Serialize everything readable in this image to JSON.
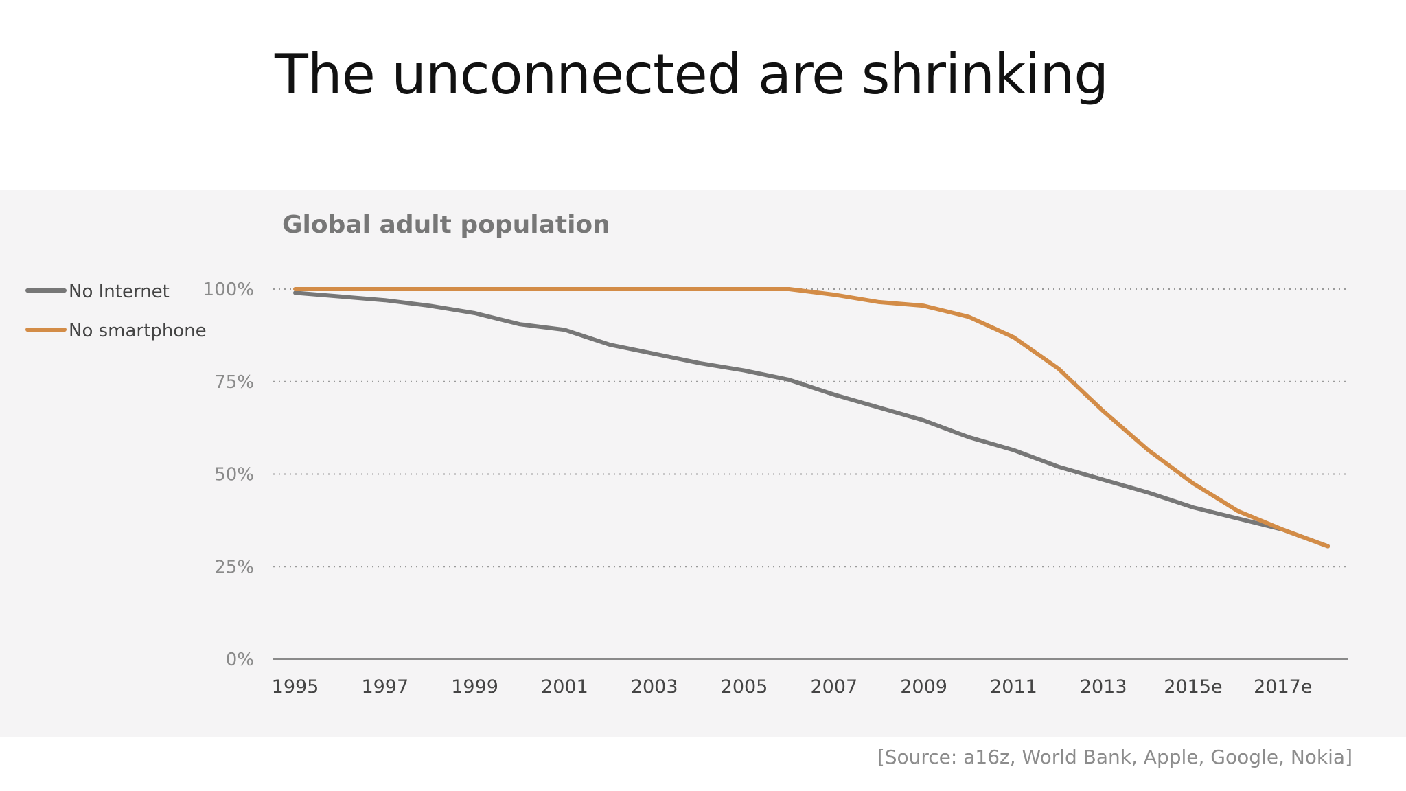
{
  "slide": {
    "title": "The unconnected are shrinking",
    "source": "[Source: a16z, World Bank, Apple, Google, Nokia]"
  },
  "chart_data": {
    "type": "line",
    "title": "Global adult population",
    "xlabel": "",
    "ylabel": "",
    "x": [
      1995,
      1996,
      1997,
      1998,
      1999,
      2000,
      2001,
      2002,
      2003,
      2004,
      2005,
      2006,
      2007,
      2008,
      2009,
      2010,
      2011,
      2012,
      2013,
      2014,
      2015,
      2016,
      2017,
      2018
    ],
    "x_tick_labels": [
      "1995",
      "1997",
      "1999",
      "2001",
      "2003",
      "2005",
      "2007",
      "2009",
      "2011",
      "2013",
      "2015e",
      "2017e"
    ],
    "y_tick_labels": [
      "0%",
      "25%",
      "50%",
      "75%",
      "100%"
    ],
    "y_ticks": [
      0,
      25,
      50,
      75,
      100
    ],
    "ylim": [
      0,
      100
    ],
    "grid": true,
    "legend_position": "left",
    "series": [
      {
        "name": "No Internet",
        "color": "#777777",
        "values": [
          99,
          98,
          97,
          95.5,
          93.5,
          90.5,
          89,
          85,
          82.5,
          80,
          78,
          75.5,
          71.5,
          68,
          64.5,
          60,
          56.5,
          52,
          48.5,
          45,
          41,
          38,
          35,
          30.5
        ]
      },
      {
        "name": "No smartphone",
        "color": "#d38c47",
        "values": [
          100,
          100,
          100,
          100,
          100,
          100,
          100,
          100,
          100,
          100,
          100,
          100,
          98.5,
          96.5,
          95.5,
          92.5,
          87,
          78.5,
          67,
          56.5,
          47.5,
          40,
          35,
          30.5
        ]
      }
    ]
  }
}
